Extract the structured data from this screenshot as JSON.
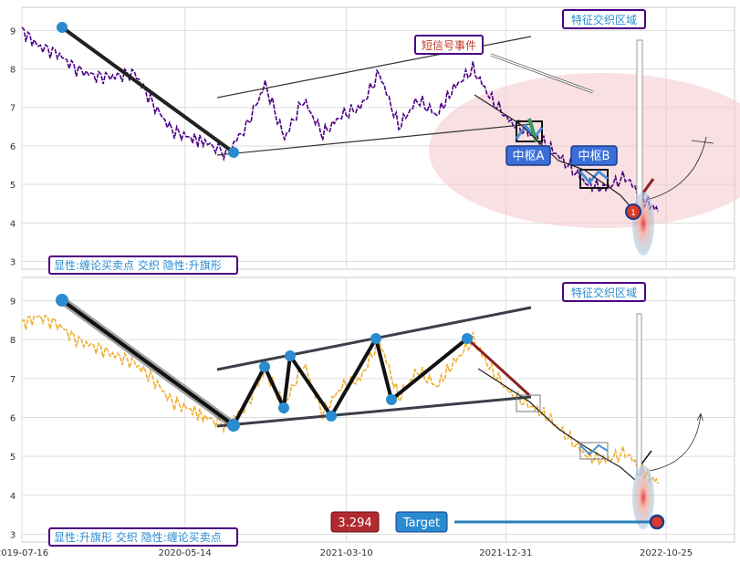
{
  "chart_data": [
    {
      "type": "line",
      "panel": "top",
      "ylim": [
        2.8,
        9.6
      ],
      "yticks": [
        3,
        4,
        5,
        6,
        7,
        8,
        9
      ],
      "grid": true,
      "series": [
        {
          "color": "#4b0082",
          "x": [
            "2019-07-16",
            "2019-08-15",
            "2019-09-20",
            "2019-10-25",
            "2019-12-01",
            "2020-01-05",
            "2020-02-10",
            "2020-03-15",
            "2020-04-20",
            "2020-05-25",
            "2020-06-20",
            "2020-07-30",
            "2020-09-05",
            "2020-10-10",
            "2020-11-15",
            "2020-12-20",
            "2021-01-25",
            "2021-03-01",
            "2021-04-05",
            "2021-05-10",
            "2021-06-15",
            "2021-07-20",
            "2021-08-25",
            "2021-09-25",
            "2021-10-31",
            "2021-12-05",
            "2022-01-10",
            "2022-02-15",
            "2022-03-20",
            "2022-04-25",
            "2022-06-01",
            "2022-07-05",
            "2022-08-10",
            "2022-09-15",
            "2022-10-10"
          ],
          "values": [
            9.0,
            8.6,
            8.4,
            8.0,
            7.8,
            7.8,
            7.9,
            7.1,
            6.4,
            6.2,
            6.1,
            5.8,
            6.5,
            7.6,
            6.2,
            7.2,
            6.3,
            6.8,
            7.0,
            7.9,
            6.5,
            7.2,
            6.8,
            7.5,
            8.0,
            7.2,
            6.6,
            6.3,
            6.0,
            5.5,
            5.0,
            4.9,
            5.2,
            4.6,
            4.3
          ]
        }
      ],
      "labels": {
        "top_right_box": "特征交织区域",
        "signal_box": "短信号事件",
        "zhongshu_a": "中枢A",
        "zhongshu_b": "中枢B",
        "dot_mark": "1",
        "bottom_left_box": "显性:缠论买卖点 交织 隐性:升旗形"
      }
    },
    {
      "type": "line",
      "panel": "bottom",
      "ylim": [
        2.8,
        9.6
      ],
      "yticks": [
        3,
        4,
        5,
        6,
        7,
        8,
        9
      ],
      "xticks": [
        "2019-07-16",
        "2020-05-14",
        "2021-03-10",
        "2021-12-31",
        "2022-10-25"
      ],
      "grid": true,
      "series": [
        {
          "color": "#f0b030",
          "x": [
            "2019-07-16",
            "2019-08-15",
            "2019-09-20",
            "2019-10-25",
            "2019-12-01",
            "2020-01-05",
            "2020-02-10",
            "2020-03-15",
            "2020-04-20",
            "2020-05-25",
            "2020-06-20",
            "2020-07-30",
            "2020-09-05",
            "2020-10-10",
            "2020-11-15",
            "2020-12-20",
            "2021-01-25",
            "2021-03-01",
            "2021-04-05",
            "2021-05-10",
            "2021-06-15",
            "2021-07-20",
            "2021-08-25",
            "2021-09-25",
            "2021-10-31",
            "2021-12-05",
            "2022-01-10",
            "2022-02-15",
            "2022-03-20",
            "2022-04-25",
            "2022-06-01",
            "2022-07-05",
            "2022-08-10",
            "2022-09-15",
            "2022-10-10"
          ],
          "values": [
            8.4,
            8.6,
            8.4,
            8.0,
            7.8,
            7.6,
            7.4,
            7.0,
            6.4,
            6.2,
            6.0,
            5.8,
            6.3,
            7.2,
            6.3,
            7.4,
            6.1,
            6.8,
            7.0,
            8.0,
            6.5,
            7.2,
            6.8,
            7.4,
            8.0,
            7.2,
            6.6,
            6.3,
            6.0,
            5.5,
            5.0,
            4.9,
            5.1,
            4.6,
            4.3
          ]
        }
      ],
      "labels": {
        "top_right_box": "特征交织区域",
        "value_box": "3.294",
        "target_box": "Target",
        "bottom_left_box": "显性:升旗形 交织 隐性:缠论买卖点"
      }
    }
  ]
}
